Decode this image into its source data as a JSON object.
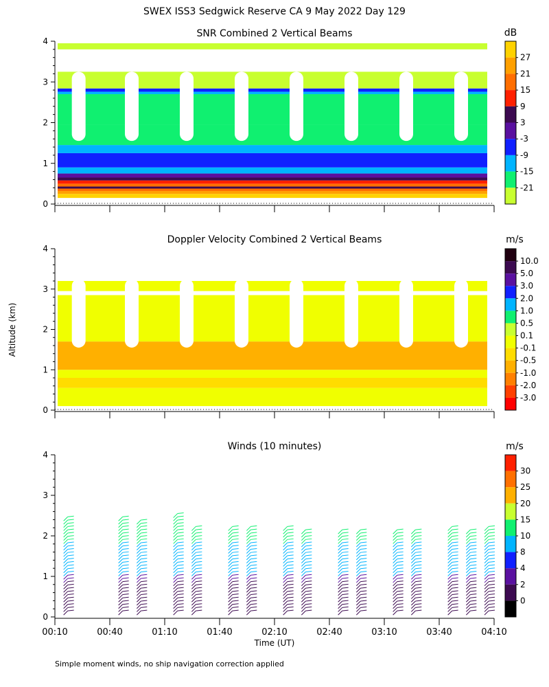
{
  "figure": {
    "title": "SWEX ISS3 Sedgwick Reserve CA   9 May 2022 Day 129",
    "ylabel": "Altitude (km)",
    "xlabel": "Time (UT)",
    "footnote": "Simple moment winds, no ship navigation correction applied"
  },
  "chart_data": [
    {
      "type": "heatmap",
      "title": "SNR Combined 2 Vertical Beams",
      "xlabel": "",
      "ylabel": "Altitude (km)",
      "ylim": [
        0,
        4
      ],
      "yticks": [
        "0",
        "1",
        "2",
        "3",
        "4"
      ],
      "xlim": [
        "00:10",
        "04:10"
      ],
      "colorbar": {
        "unit": "dB",
        "labels": [
          "27",
          "21",
          "15",
          "9",
          "3",
          "-3",
          "-9",
          "-15",
          "-21"
        ],
        "colors": [
          "#ffd200",
          "#ffa000",
          "#ff6e00",
          "#ff2000",
          "#3c0a50",
          "#5a10a0",
          "#1020ff",
          "#00b4ff",
          "#10f070",
          "#c8ff30"
        ]
      },
      "gap_times": [
        "00:23",
        "00:52",
        "01:22",
        "01:52",
        "02:22",
        "02:52",
        "03:22",
        "03:52"
      ],
      "layers": [
        {
          "from": 0.15,
          "to": 0.25,
          "color": "#ffd200"
        },
        {
          "from": 0.25,
          "to": 0.32,
          "color": "#ffa000"
        },
        {
          "from": 0.32,
          "to": 0.38,
          "color": "#ff6e00"
        },
        {
          "from": 0.38,
          "to": 0.43,
          "color": "#3c0a50"
        },
        {
          "from": 0.43,
          "to": 0.5,
          "color": "#ff6e00"
        },
        {
          "from": 0.5,
          "to": 0.58,
          "color": "#ff2000"
        },
        {
          "from": 0.58,
          "to": 0.65,
          "color": "#3c0a50"
        },
        {
          "from": 0.65,
          "to": 0.75,
          "color": "#5a10a0"
        },
        {
          "from": 0.75,
          "to": 0.9,
          "color": "#00b4ff"
        },
        {
          "from": 0.9,
          "to": 1.25,
          "color": "#1020ff"
        },
        {
          "from": 1.25,
          "to": 1.45,
          "color": "#00b4ff"
        },
        {
          "from": 1.45,
          "to": 1.95,
          "color": "#10f070"
        },
        {
          "from": 1.95,
          "to": 2.7,
          "color": "#10f070"
        },
        {
          "from": 2.7,
          "to": 2.76,
          "color": "#00b4ff"
        },
        {
          "from": 2.76,
          "to": 2.84,
          "color": "#1020ff"
        },
        {
          "from": 2.84,
          "to": 3.25,
          "color": "#c8ff30"
        },
        {
          "from": 3.8,
          "to": 3.95,
          "color": "#c8ff30"
        }
      ]
    },
    {
      "type": "heatmap",
      "title": "Doppler Velocity Combined 2 Vertical Beams",
      "xlabel": "",
      "ylabel": "Altitude (km)",
      "ylim": [
        0,
        4
      ],
      "yticks": [
        "0",
        "1",
        "2",
        "3",
        "4"
      ],
      "xlim": [
        "00:10",
        "04:10"
      ],
      "colorbar": {
        "unit": "m/s",
        "labels": [
          "10.0",
          "5.0",
          "3.0",
          "2.0",
          "1.0",
          "0.5",
          "0.1",
          "-0.1",
          "-0.5",
          "-1.0",
          "-2.0",
          "-3.0"
        ],
        "colors": [
          "#200010",
          "#3c0a50",
          "#5a10a0",
          "#1020ff",
          "#00b4ff",
          "#10f070",
          "#c8ff30",
          "#f0ff00",
          "#ffdc00",
          "#ffb000",
          "#ff8000",
          "#ff4000",
          "#ff0000"
        ]
      },
      "gap_times": [
        "00:23",
        "00:52",
        "01:22",
        "01:52",
        "02:22",
        "02:52",
        "03:22",
        "03:52"
      ],
      "layers": [
        {
          "from": 0.1,
          "to": 0.55,
          "color": "#f0ff00"
        },
        {
          "from": 0.55,
          "to": 0.8,
          "color": "#ffdc00"
        },
        {
          "from": 0.8,
          "to": 1.0,
          "color": "#f0ff00"
        },
        {
          "from": 1.0,
          "to": 1.7,
          "color": "#ffb000"
        },
        {
          "from": 1.7,
          "to": 2.85,
          "color": "#f0ff00"
        },
        {
          "from": 2.95,
          "to": 3.2,
          "color": "#f0ff00"
        }
      ]
    },
    {
      "type": "scatter",
      "title": "Winds (10 minutes)",
      "xlabel": "Time (UT)",
      "ylabel": "Altitude (km)",
      "ylim": [
        0,
        4
      ],
      "yticks": [
        "0",
        "1",
        "2",
        "3",
        "4"
      ],
      "xticks": [
        "00:10",
        "00:40",
        "01:10",
        "01:40",
        "02:10",
        "02:40",
        "03:10",
        "03:40",
        "04:10"
      ],
      "colorbar": {
        "unit": "m/s",
        "labels": [
          "30",
          "25",
          "20",
          "15",
          "10",
          "8",
          "4",
          "2",
          "0"
        ],
        "colors": [
          "#ff2000",
          "#ff7000",
          "#ffb000",
          "#c8ff30",
          "#10f070",
          "#00b4ff",
          "#1020ff",
          "#5a10a0",
          "#3c0a50",
          "#000000"
        ]
      },
      "profile_times": [
        "00:17",
        "00:47",
        "00:57",
        "01:17",
        "01:27",
        "01:47",
        "01:57",
        "02:17",
        "02:27",
        "02:47",
        "02:57",
        "03:17",
        "03:27",
        "03:47",
        "03:57",
        "04:07"
      ],
      "profile_top_km": [
        2.5,
        2.5,
        2.4,
        2.6,
        2.3,
        2.3,
        2.3,
        2.3,
        2.2,
        2.2,
        2.2,
        2.2,
        2.2,
        2.3,
        2.2,
        2.3
      ]
    }
  ]
}
